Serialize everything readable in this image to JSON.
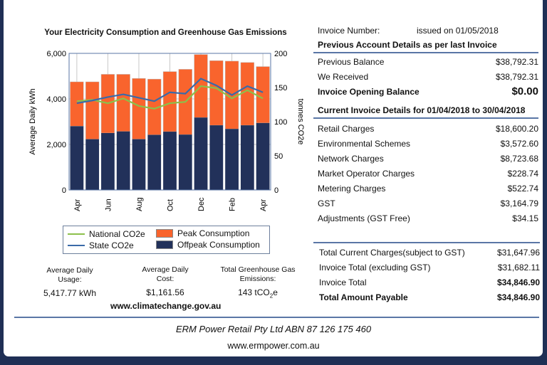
{
  "chart": {
    "title": "Your Electricity Consumption and Greenhouse Gas Emissions",
    "chart_data": {
      "type": "bar",
      "stacked": true,
      "categories": [
        "Apr",
        "May",
        "Jun",
        "Jul",
        "Aug",
        "Sep",
        "Oct",
        "Nov",
        "Dec",
        "Jan",
        "Feb",
        "Mar",
        "Apr"
      ],
      "x_tick_labels": [
        "Apr",
        "",
        "Jun",
        "",
        "Aug",
        "",
        "Oct",
        "",
        "Dec",
        "",
        "Feb",
        "",
        "Apr"
      ],
      "ylabel": "Average Daily kWh",
      "ylim": [
        0,
        6000
      ],
      "yticks": [
        "0",
        "2,000",
        "4,000",
        "6,000"
      ],
      "y2label": "tonnes CO2e",
      "y2lim": [
        0,
        200
      ],
      "y2ticks": [
        "0",
        "50",
        "100",
        "150",
        "200"
      ],
      "grid": true,
      "series": [
        {
          "name": "Offpeak Consumption",
          "type": "bar",
          "axis": "left",
          "color": "#22315a",
          "values": [
            2800,
            2230,
            2500,
            2570,
            2230,
            2420,
            2560,
            2430,
            3180,
            2840,
            2680,
            2840,
            2940
          ]
        },
        {
          "name": "Peak Consumption",
          "type": "bar",
          "axis": "left",
          "color": "#f9642d",
          "values": [
            1950,
            2520,
            2580,
            2510,
            2670,
            2450,
            2640,
            2870,
            2770,
            2840,
            2980,
            2760,
            2480
          ]
        },
        {
          "name": "National CO2e",
          "type": "line",
          "axis": "right",
          "color": "#8cc04b",
          "values": [
            130,
            132,
            127,
            134,
            123,
            119,
            127,
            129,
            152,
            149,
            134,
            146,
            134
          ]
        },
        {
          "name": "State CO2e",
          "type": "line",
          "axis": "right",
          "color": "#3a6aa8",
          "values": [
            127,
            131,
            136,
            140,
            135,
            130,
            143,
            141,
            163,
            153,
            139,
            152,
            143
          ]
        }
      ],
      "legend": "bottom"
    },
    "legend": {
      "national": "National CO2e",
      "state": "State CO2e",
      "peak": "Peak Consumption",
      "offpeak": "Offpeak Consumption"
    }
  },
  "stats": [
    {
      "label1": "Average Daily",
      "label2": "Usage:",
      "value": "5,417.77 kWh"
    },
    {
      "label1": "Average Daily",
      "label2": "Cost:",
      "value": "$1,161.56"
    },
    {
      "label1": "Total Greenhouse Gas",
      "label2": "Emissions:",
      "value_pre": "143 tCO",
      "value_sub": "2",
      "value_post": "e"
    }
  ],
  "climate_link": "www.climatechange.gov.au",
  "invoice": {
    "number_label": "Invoice Number:",
    "issued": "issued on 01/05/2018",
    "prev_header": "Previous Account Details as per last Invoice",
    "prev_rows": [
      {
        "label": "Previous Balance",
        "value": "$38,792.31"
      },
      {
        "label": "We Received",
        "value": "$38,792.31"
      }
    ],
    "opening": {
      "label": "Invoice Opening Balance",
      "value": "$0.00"
    },
    "current_header": "Current Invoice Details for 01/04/2018 to 30/04/2018",
    "current_rows": [
      {
        "label": "Retail Charges",
        "value": "$18,600.20"
      },
      {
        "label": "Environmental Schemes",
        "value": "$3,572.60"
      },
      {
        "label": "Network Charges",
        "value": "$8,723.68"
      },
      {
        "label": "Market Operator Charges",
        "value": "$228.74"
      },
      {
        "label": "Metering Charges",
        "value": "$522.74"
      },
      {
        "label": "GST",
        "value": "$3,164.79"
      },
      {
        "label": "Adjustments (GST Free)",
        "value": "$34.15"
      }
    ],
    "totals": [
      {
        "label": "Total Current Charges(subject to GST)",
        "value": "$31,647.96",
        "bold_label": false,
        "bold_value": false
      },
      {
        "label": "Invoice Total (excluding GST)",
        "value": "$31,682.11",
        "bold_label": false,
        "bold_value": false
      },
      {
        "label": "Invoice Total",
        "value": "$34,846.90",
        "bold_label": false,
        "bold_value": true
      },
      {
        "label": "Total Amount Payable",
        "value": "$34,846.90",
        "bold_label": true,
        "bold_value": true
      }
    ]
  },
  "footer": {
    "company": "ERM Power Retail Pty Ltd ABN 87 126 175 460",
    "website": "www.ermpower.com.au"
  }
}
